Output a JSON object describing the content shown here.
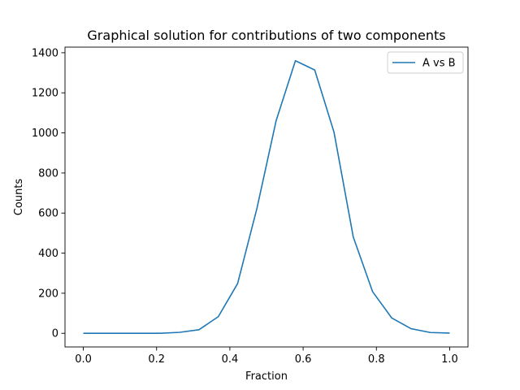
{
  "chart_data": {
    "type": "line",
    "title": "Graphical solution for contributions of two components",
    "xlabel": "Fraction",
    "ylabel": "Counts",
    "xlim": [
      -0.05,
      1.05
    ],
    "ylim": [
      -68,
      1428
    ],
    "xticks": [
      0.0,
      0.2,
      0.4,
      0.6,
      0.8,
      1.0
    ],
    "xtick_labels": [
      "0.0",
      "0.2",
      "0.4",
      "0.6",
      "0.8",
      "1.0"
    ],
    "yticks": [
      0,
      200,
      400,
      600,
      800,
      1000,
      1200,
      1400
    ],
    "ytick_labels": [
      "0",
      "200",
      "400",
      "600",
      "800",
      "1000",
      "1200",
      "1400"
    ],
    "grid": false,
    "legend_position": "upper-right",
    "series": [
      {
        "name": "A vs B",
        "color": "#1f77b4",
        "x": [
          0.0,
          0.0526,
          0.1053,
          0.1579,
          0.2105,
          0.2632,
          0.3158,
          0.3684,
          0.4211,
          0.4737,
          0.5263,
          0.5789,
          0.6316,
          0.6842,
          0.7368,
          0.7895,
          0.8421,
          0.8947,
          0.9474,
          1.0
        ],
        "y": [
          0,
          0,
          0,
          0,
          0,
          5,
          18,
          83,
          248,
          622,
          1061,
          1360,
          1314,
          1004,
          481,
          208,
          76,
          23,
          4,
          1
        ]
      }
    ]
  }
}
